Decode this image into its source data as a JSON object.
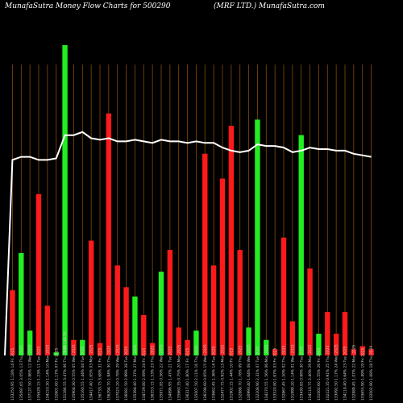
{
  "header": {
    "left": "MunafaSutra  Money Flow  Charts for 500290",
    "right": "(MRF LTD.) MunafaSutra.com"
  },
  "colors": {
    "background": "#000000",
    "up": "#22ee22",
    "down": "#ff1a1a",
    "grid": "#8a4a08",
    "line": "#ffffff"
  },
  "chart_data": {
    "type": "bar",
    "title": "MunafaSutra  Money Flow  Charts for 500290",
    "subtitle": "(MRF LTD.) MunafaSutra.com",
    "ylim": [
      0,
      100
    ],
    "categories": [
      "133250.95 1.18% 14 Fri 2025",
      "135097.65 3.05% 13 Thu 2025",
      "137127.50 2.86% 12 Wed 2025",
      "135629.15 1.23% 11 Tue 2025",
      "134153.30 1.14% 10 Mon 2025",
      "132601.60 1.17% 07 Fri 2025",
      "131286.55 3.47% 06 Thu 2025",
      "135904.30 0.55% 05 Wed 2025",
      "135160.55 1.44% 04 Tue 2025",
      "134417.40 1.65% 03 Mon 2025",
      "136733.75 3.68% 31 Fri 2025",
      "136294.70 1.94% 30 Thu 2025",
      "137023.20 0.78% 29 Wed 2025",
      "136081.50 2.99% 28 Tue 2025",
      "135394.40 1.37% 27 Mon 2025",
      "134729.80 2.09% 24 Fri 2025",
      "136553.15 1.53% 23 Thu 2025",
      "135871.85 0.56% 22 Wed 2025",
      "134896.95 1.47% 21 Tue 2025",
      "135660.35 0.75% 20 Mon 2025",
      "136317.40 1.80% 17 Fri 2025",
      "135007.50 2.11% 16 Thu 2025",
      "136198.60 0.65% 15 Wed 2025",
      "133662.45 1.36% 14 Tue 2025",
      "132477.75 0.92% 13 Mon 2025",
      "131902.15 1.44% 10 Fri 2025",
      "132888.70 1.78% 09 Thu 2025",
      "130993.40 1.64% 08 Wed 2025",
      "132208.90 2.31% 07 Tue 2025",
      "134270.55 1.56% 06 Mon 2025",
      "133520.80 1.67% 03 Fri 2025",
      "132867.45 1.50% 02 Thu 2025",
      "131999.20 1.14% 01 Wed 2025",
      "133430.85 0.88% 30 Tue 2025",
      "134110.75 2.40% 29 Mon 2025",
      "131002.60 1.55% 26 Fri 2025",
      "132221.35 0.91% 25 Thu 2025",
      "133092.50 1.17% 24 Wed 2025",
      "134118.40 0.64% 23 Tue 2025",
      "132889.45 1.07% 22 Mon 2025",
      "133655.90 1.49% 19 Fri 2025",
      "132002.90 1.08% 18 Thu 2025"
    ],
    "bar_labels": {
      "6": "1.69 148.50"
    },
    "series": [
      {
        "role": "money-flow-bars",
        "values": [
          21,
          33,
          8,
          52,
          16,
          1,
          100,
          5,
          5,
          37,
          4,
          78,
          29,
          22,
          19,
          13,
          4,
          27,
          34,
          9,
          5,
          8,
          65,
          29,
          57,
          74,
          34,
          9,
          76,
          5,
          2,
          38,
          11,
          71,
          28,
          7,
          14,
          7,
          14,
          2,
          3,
          2
        ],
        "directions": [
          "down",
          "up",
          "up",
          "down",
          "down",
          "up",
          "up",
          "down",
          "up",
          "down",
          "down",
          "down",
          "down",
          "down",
          "up",
          "down",
          "down",
          "up",
          "down",
          "down",
          "down",
          "up",
          "down",
          "down",
          "down",
          "down",
          "down",
          "up",
          "up",
          "up",
          "down",
          "down",
          "down",
          "up",
          "down",
          "up",
          "down",
          "down",
          "down",
          "down",
          "down",
          "down"
        ]
      },
      {
        "role": "price-line",
        "values": [
          63,
          64,
          64,
          63,
          63,
          63.5,
          71,
          71,
          72,
          70,
          69.5,
          70,
          69,
          69,
          69.5,
          69,
          68.5,
          69.5,
          69,
          69,
          68.5,
          69,
          68.5,
          68.5,
          67,
          66,
          65.5,
          66,
          68,
          67.5,
          67.5,
          67,
          65.5,
          66,
          67,
          66.5,
          66.5,
          66,
          66,
          65,
          64.5,
          64
        ]
      }
    ]
  }
}
